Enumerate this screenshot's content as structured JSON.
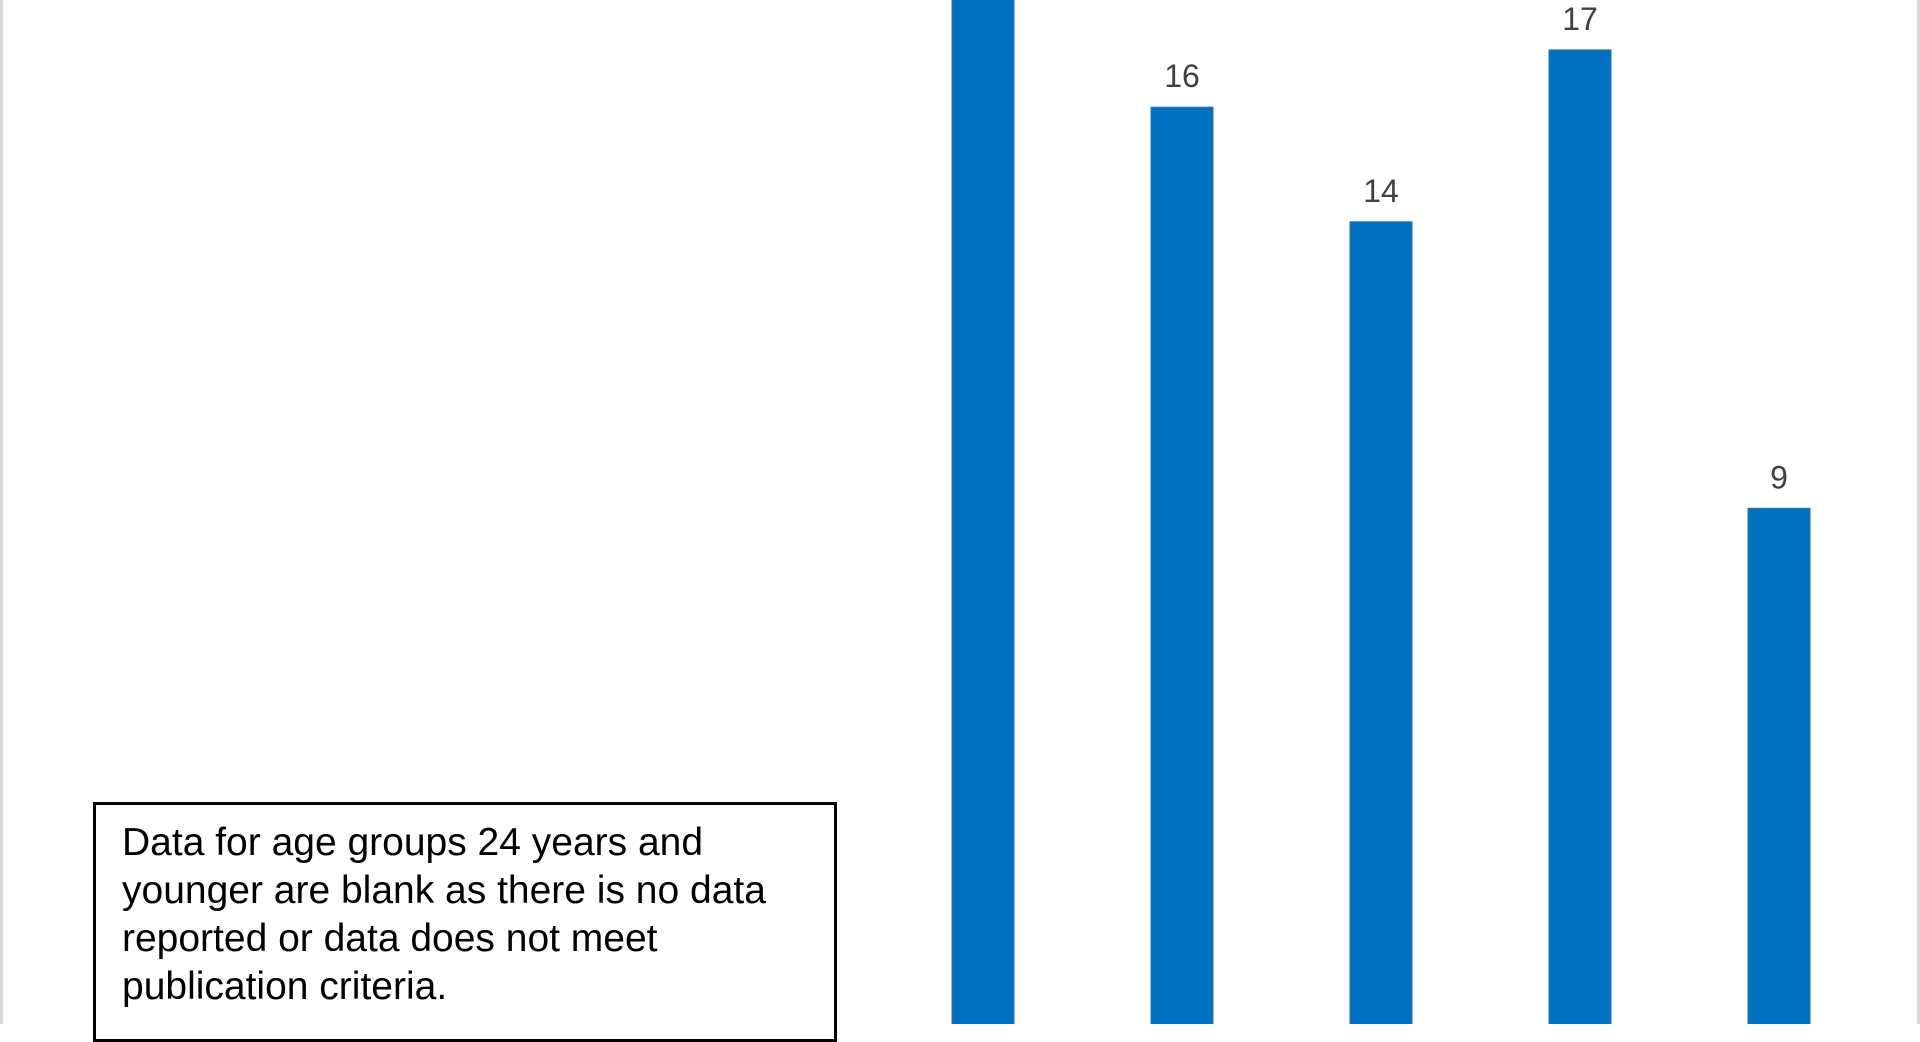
{
  "chart_data": {
    "type": "bar",
    "categories": [
      "",
      "",
      "",
      "",
      ""
    ],
    "values": [
      25,
      16,
      14,
      17,
      9
    ],
    "data_labels": [
      "",
      "16",
      "14",
      "17",
      "9"
    ],
    "bar_color": "#0070c0",
    "label_color": "#404040",
    "ylim": [
      0,
      30
    ],
    "title": "",
    "xlabel": "",
    "ylabel": "",
    "grid": false,
    "legend": "none"
  },
  "note": {
    "text": "Data for age groups 24 years and younger are blank as there is no data reported or data does not meet publication criteria."
  }
}
